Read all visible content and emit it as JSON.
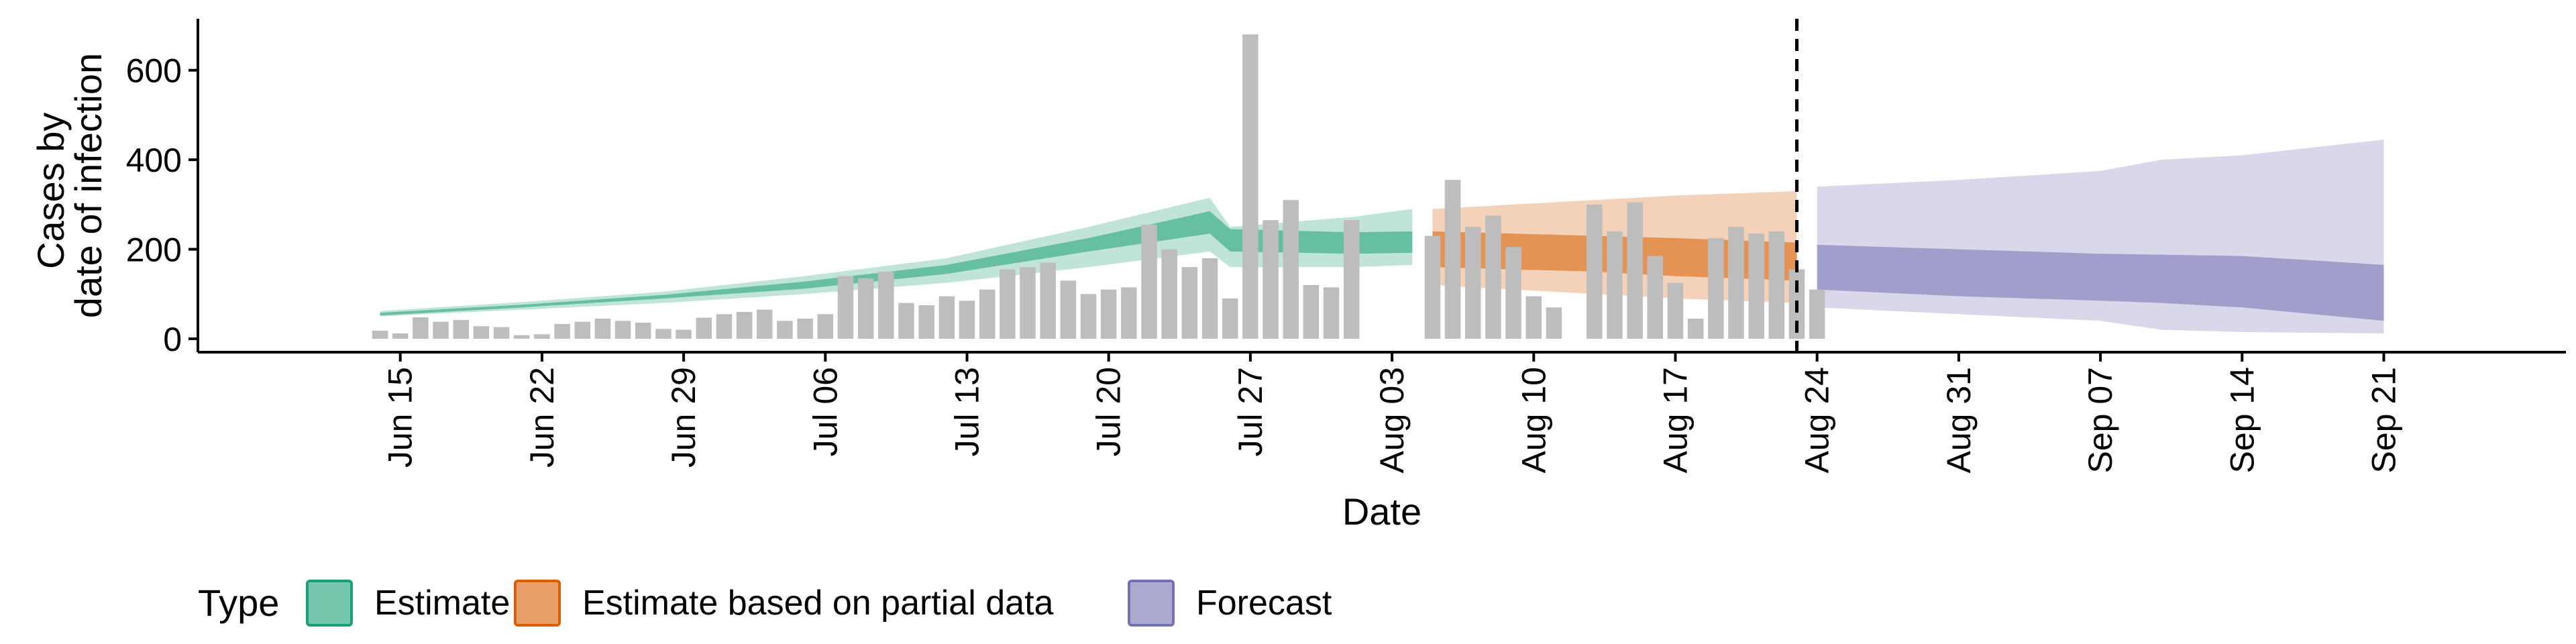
{
  "chart_data": {
    "type": "bar",
    "xlabel": "Date",
    "ylabel": [
      "Cases by",
      "date of infection"
    ],
    "yticks": [
      0,
      200,
      400,
      600
    ],
    "ylim": [
      -30,
      715
    ],
    "xlim": [
      "2020-06-05",
      "2020-09-30"
    ],
    "xticks": [
      "2020-06-15",
      "2020-06-22",
      "2020-06-29",
      "2020-07-06",
      "2020-07-13",
      "2020-07-20",
      "2020-07-27",
      "2020-08-03",
      "2020-08-10",
      "2020-08-17",
      "2020-08-24",
      "2020-08-31",
      "2020-09-07",
      "2020-09-14",
      "2020-09-21"
    ],
    "xtick_labels": [
      "Jun 15",
      "Jun 22",
      "Jun 29",
      "Jul 06",
      "Jul 13",
      "Jul 20",
      "Jul 27",
      "Aug 03",
      "Aug 10",
      "Aug 17",
      "Aug 24",
      "Aug 31",
      "Sep 07",
      "Sep 14",
      "Sep 21"
    ],
    "forecast_start_line": "2020-08-23",
    "grid": false,
    "legend": {
      "title": "Type",
      "position": "bottom",
      "items": [
        {
          "label": "Estimate",
          "color": "#1b9e77"
        },
        {
          "label": "Estimate based on partial data",
          "color": "#d95f02"
        },
        {
          "label": "Forecast",
          "color": "#7570b3"
        }
      ]
    },
    "bar_color": "#bdbdbd",
    "bars": {
      "start_date": "2020-06-14",
      "values": [
        18,
        12,
        48,
        38,
        42,
        28,
        26,
        8,
        10,
        33,
        38,
        45,
        40,
        36,
        22,
        20,
        47,
        55,
        60,
        65,
        40,
        45,
        55,
        140,
        135,
        150,
        80,
        75,
        95,
        85,
        110,
        155,
        160,
        170,
        130,
        100,
        110,
        115,
        255,
        200,
        160,
        180,
        90,
        680,
        265,
        310,
        120,
        115,
        265,
        0,
        0,
        0,
        230,
        355,
        250,
        275,
        205,
        95,
        70,
        0,
        300,
        240,
        305,
        185,
        125,
        45,
        225,
        250,
        235,
        240,
        155,
        110
      ]
    },
    "series": [
      {
        "name": "Estimate",
        "color": "#1b9e77",
        "x": [
          "2020-06-14",
          "2020-06-21",
          "2020-06-28",
          "2020-07-05",
          "2020-07-12",
          "2020-07-19",
          "2020-07-25",
          "2020-07-26",
          "2020-08-01",
          "2020-08-04"
        ],
        "upper90": [
          62,
          82,
          105,
          140,
          180,
          250,
          315,
          250,
          272,
          290
        ],
        "upper50": [
          58,
          76,
          98,
          128,
          165,
          225,
          285,
          245,
          238,
          240
        ],
        "lower50": [
          52,
          70,
          90,
          112,
          145,
          195,
          235,
          195,
          190,
          192
        ],
        "lower90": [
          50,
          65,
          80,
          100,
          125,
          160,
          195,
          160,
          160,
          165
        ]
      },
      {
        "name": "Estimate based on partial data",
        "color": "#d95f02",
        "x": [
          "2020-08-05",
          "2020-08-09",
          "2020-08-13",
          "2020-08-17",
          "2020-08-20",
          "2020-08-23"
        ],
        "upper90": [
          290,
          300,
          310,
          320,
          325,
          330
        ],
        "upper50": [
          240,
          235,
          230,
          225,
          220,
          215
        ],
        "lower50": [
          160,
          155,
          150,
          140,
          135,
          130
        ],
        "lower90": [
          120,
          110,
          100,
          90,
          85,
          80
        ]
      },
      {
        "name": "Forecast",
        "color": "#7570b3",
        "x": [
          "2020-08-24",
          "2020-08-31",
          "2020-09-07",
          "2020-09-10",
          "2020-09-14",
          "2020-09-21"
        ],
        "upper90": [
          340,
          355,
          375,
          400,
          410,
          445
        ],
        "upper50": [
          210,
          200,
          190,
          188,
          185,
          165
        ],
        "lower50": [
          110,
          95,
          85,
          80,
          70,
          40
        ],
        "lower90": [
          70,
          55,
          40,
          20,
          15,
          12
        ]
      }
    ]
  }
}
